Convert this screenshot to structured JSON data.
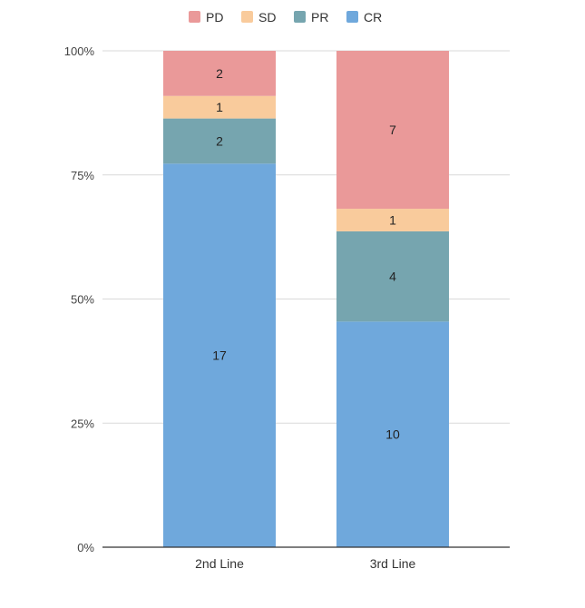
{
  "chart_data": {
    "type": "bar",
    "stacked": true,
    "normalized": true,
    "categories": [
      "2nd Line",
      "3rd Line"
    ],
    "series": [
      {
        "name": "CR",
        "color": "#6fa8dc",
        "values": [
          17,
          10
        ]
      },
      {
        "name": "PR",
        "color": "#76a5af",
        "values": [
          2,
          4
        ]
      },
      {
        "name": "SD",
        "color": "#f9cb9c",
        "values": [
          1,
          1
        ]
      },
      {
        "name": "PD",
        "color": "#ea9999",
        "values": [
          2,
          7
        ]
      }
    ],
    "legend_order": [
      "PD",
      "SD",
      "PR",
      "CR"
    ],
    "legend_position": "top",
    "y_ticks": [
      "0%",
      "25%",
      "50%",
      "75%",
      "100%"
    ],
    "ylim": [
      0,
      100
    ],
    "grid": true,
    "title": "",
    "xlabel": "",
    "ylabel": ""
  }
}
